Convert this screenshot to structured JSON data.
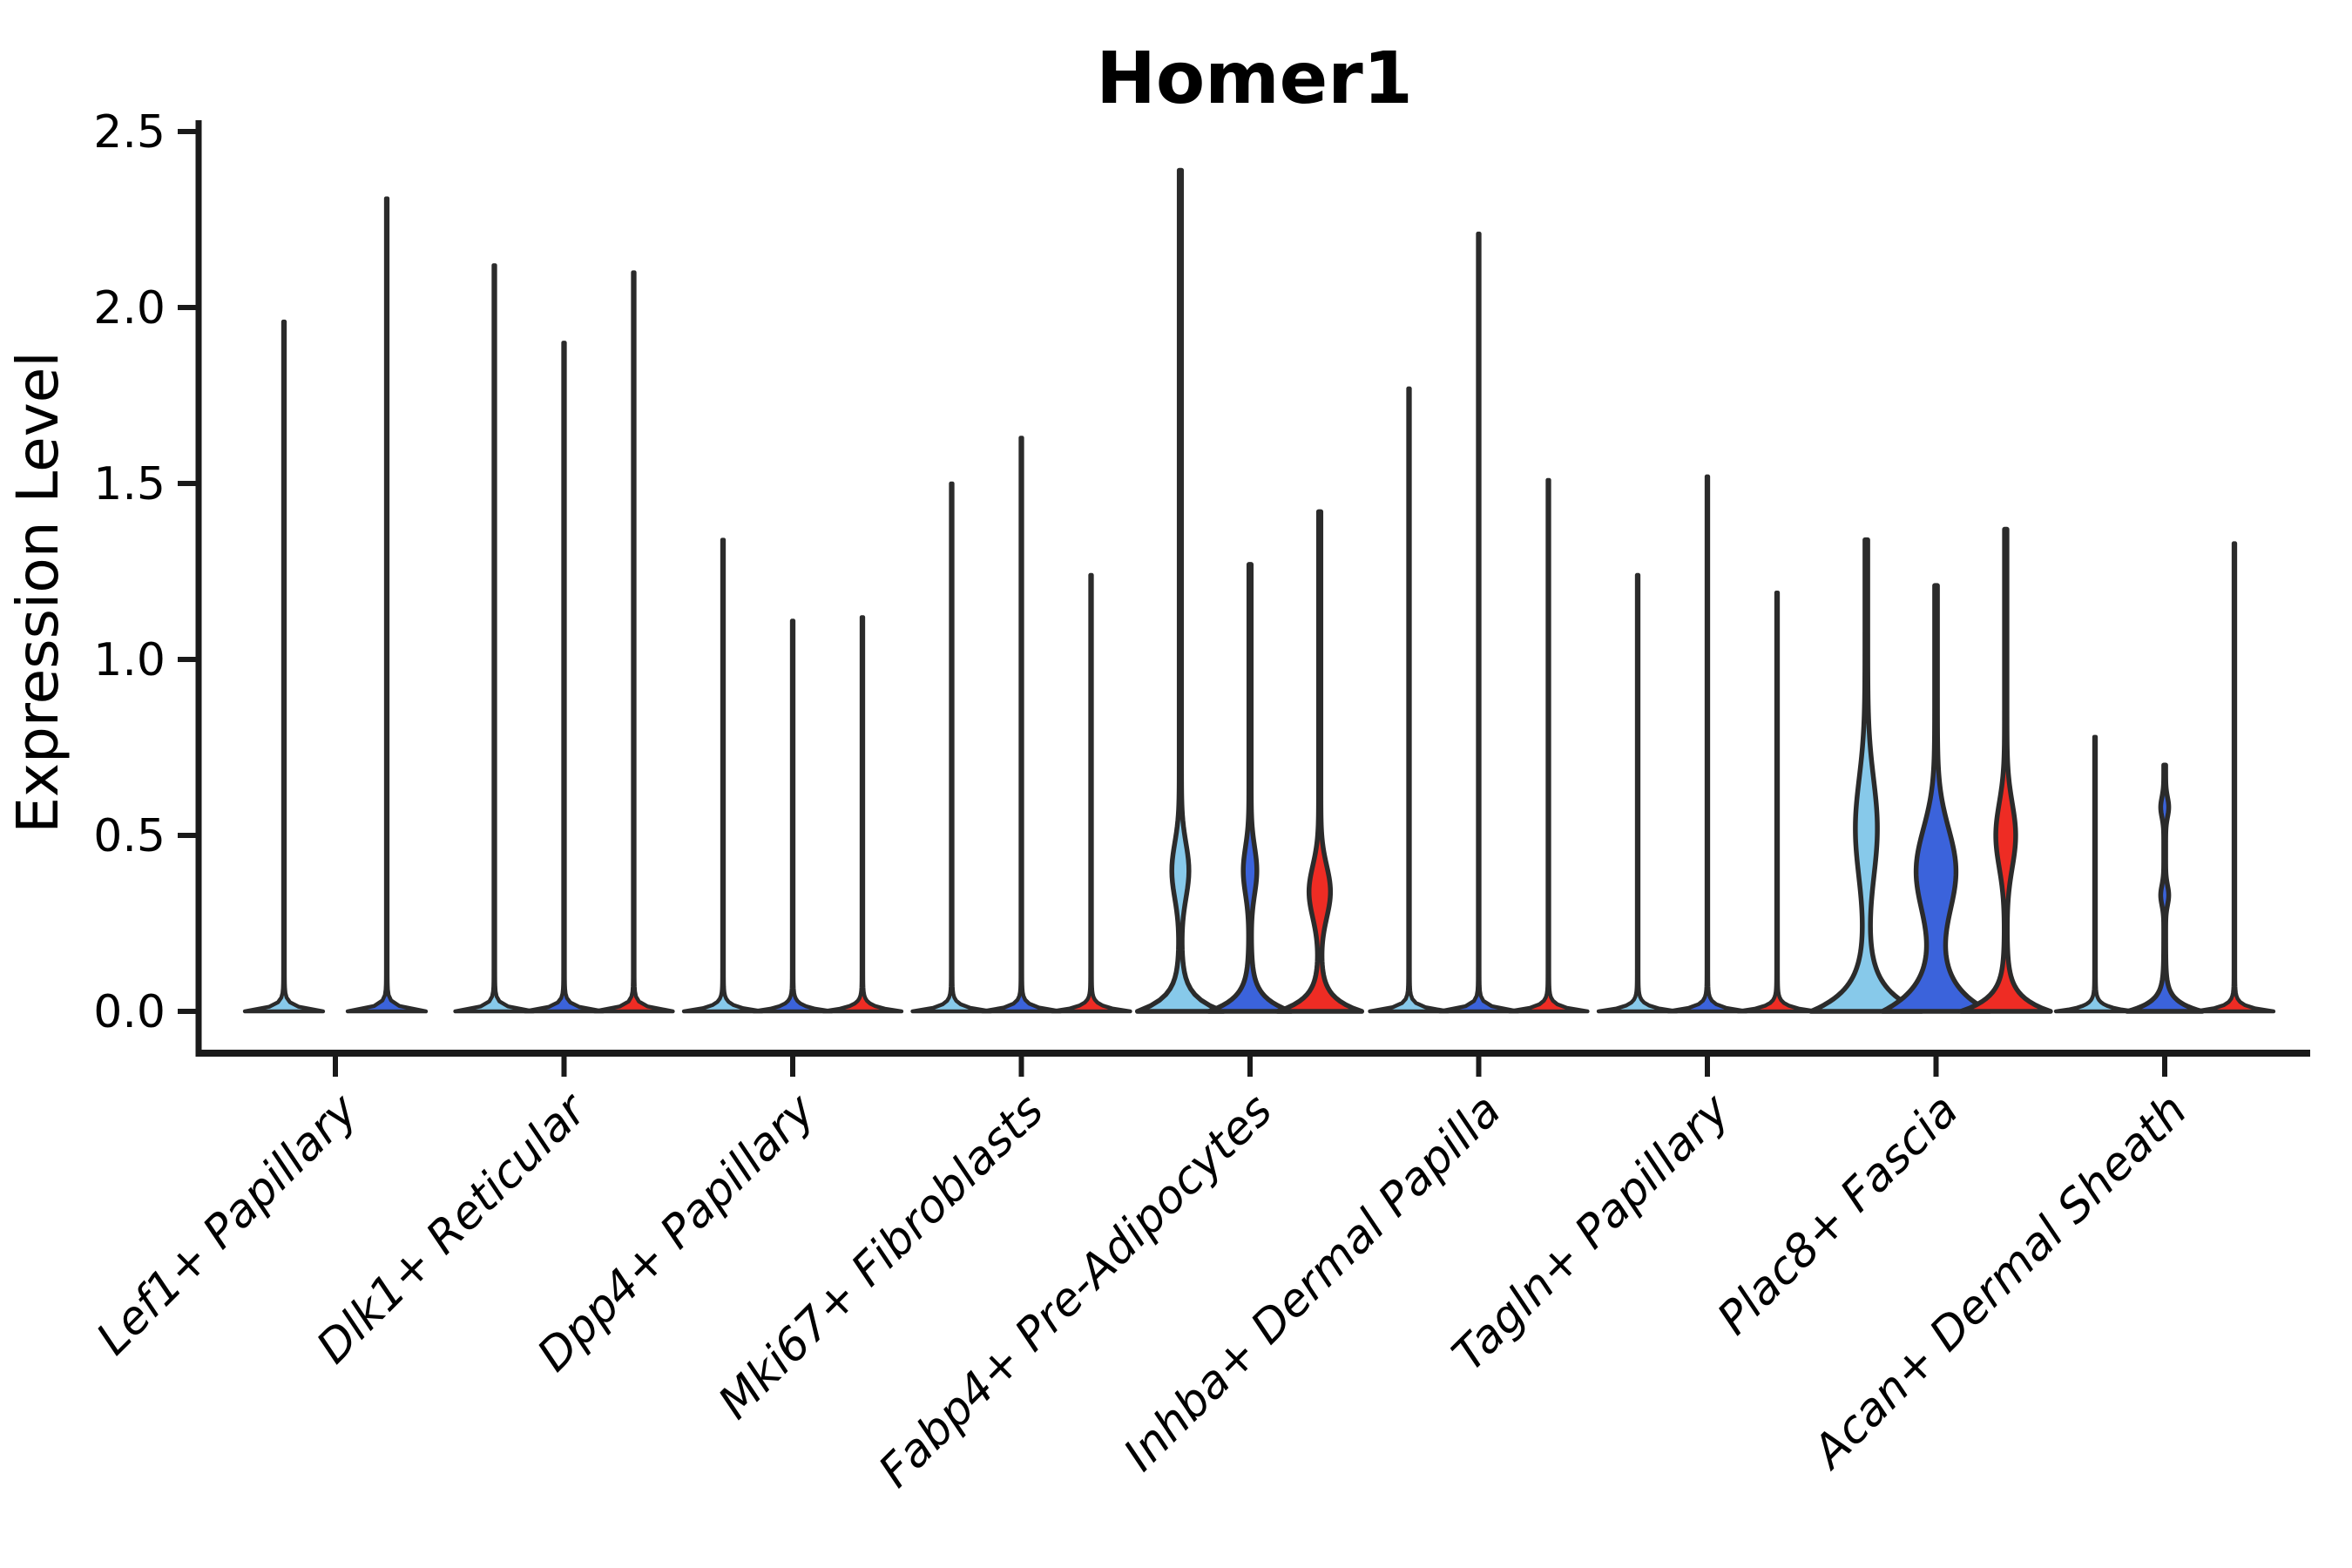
{
  "chart_data": {
    "type": "violin",
    "title": "Homer1",
    "ylabel": "Expression Level",
    "xlabel": "",
    "ylim": [
      0,
      2.5
    ],
    "yticks": [
      "0.0",
      "0.5",
      "1.0",
      "1.5",
      "2.0",
      "2.5"
    ],
    "ytick_values": [
      0.0,
      0.5,
      1.0,
      1.5,
      2.0,
      2.5
    ],
    "grid": false,
    "legend": "none",
    "palette": {
      "light_blue": "#87C9EA",
      "blue": "#3B63DB",
      "red": "#EE2C24",
      "ink": "#2B2B2B",
      "axis": "#1A1A1A"
    },
    "categories": [
      "Lef1+ Papillary",
      "Dlk1+ Reticular",
      "Dpp4+ Papillary",
      "Mki67+ Fibroblasts",
      "Fabp4+ Pre-Adipocytes",
      "Inhba+ Dermal Papilla",
      "Tagln+ Papillary",
      "Plac8+ Fascia",
      "Acan+ Dermal Sheath"
    ],
    "groups": [
      {
        "label": "Lef1+ Papillary",
        "violins": [
          {
            "color": "light_blue",
            "max": 1.96,
            "shape": "spike"
          },
          {
            "color": "blue",
            "max": 2.31,
            "shape": "spike"
          }
        ]
      },
      {
        "label": "Dlk1+ Reticular",
        "violins": [
          {
            "color": "light_blue",
            "max": 2.12,
            "shape": "spike"
          },
          {
            "color": "blue",
            "max": 1.9,
            "shape": "spike"
          },
          {
            "color": "red",
            "max": 2.1,
            "shape": "spike"
          }
        ]
      },
      {
        "label": "Dpp4+ Papillary",
        "violins": [
          {
            "color": "light_blue",
            "max": 1.34,
            "shape": "spike"
          },
          {
            "color": "blue",
            "max": 1.11,
            "shape": "spike"
          },
          {
            "color": "red",
            "max": 1.12,
            "shape": "spike"
          }
        ]
      },
      {
        "label": "Mki67+ Fibroblasts",
        "violins": [
          {
            "color": "light_blue",
            "max": 1.5,
            "shape": "spike"
          },
          {
            "color": "blue",
            "max": 1.63,
            "shape": "spike"
          },
          {
            "color": "red",
            "max": 1.24,
            "shape": "spike"
          }
        ]
      },
      {
        "label": "Fabp4+ Pre-Adipocytes",
        "violins": [
          {
            "color": "light_blue",
            "max": 2.39,
            "shape": "violin",
            "base_hw": 48,
            "base_s": 0.042,
            "line_hw": 1.3,
            "bulges": [
              {
                "c": 0.4,
                "s": 0.11,
                "hw": 8.5
              }
            ]
          },
          {
            "color": "blue",
            "max": 1.27,
            "shape": "violin",
            "base_hw": 46,
            "base_s": 0.04,
            "line_hw": 1.3,
            "bulges": [
              {
                "c": 0.4,
                "s": 0.095,
                "hw": 6.5
              }
            ]
          },
          {
            "color": "red",
            "max": 1.42,
            "shape": "violin",
            "base_hw": 47,
            "base_s": 0.038,
            "line_hw": 1.3,
            "bulges": [
              {
                "c": 0.34,
                "s": 0.105,
                "hw": 11
              }
            ]
          }
        ]
      },
      {
        "label": "Inhba+ Dermal Papilla",
        "violins": [
          {
            "color": "light_blue",
            "max": 1.77,
            "shape": "spike"
          },
          {
            "color": "blue",
            "max": 2.21,
            "shape": "spike"
          },
          {
            "color": "red",
            "max": 1.51,
            "shape": "spike"
          }
        ]
      },
      {
        "label": "Tagln+ Papillary",
        "violins": [
          {
            "color": "light_blue",
            "max": 1.24,
            "shape": "spike"
          },
          {
            "color": "blue",
            "max": 1.52,
            "shape": "spike"
          },
          {
            "color": "red",
            "max": 1.19,
            "shape": "spike"
          }
        ]
      },
      {
        "label": "Plac8+ Fascia",
        "violins": [
          {
            "color": "light_blue",
            "max": 1.34,
            "shape": "violin",
            "base_hw": 62,
            "base_s": 0.065,
            "line_hw": 1.6,
            "bulges": [
              {
                "c": 0.52,
                "s": 0.2,
                "hw": 11
              }
            ]
          },
          {
            "color": "blue",
            "max": 1.21,
            "shape": "violin",
            "base_hw": 60,
            "base_s": 0.075,
            "line_hw": 1.6,
            "bulges": [
              {
                "c": 0.4,
                "s": 0.17,
                "hw": 21
              }
            ]
          },
          {
            "color": "red",
            "max": 1.37,
            "shape": "violin",
            "base_hw": 50,
            "base_s": 0.042,
            "line_hw": 1.4,
            "bulges": [
              {
                "c": 0.5,
                "s": 0.13,
                "hw": 10
              }
            ]
          }
        ]
      },
      {
        "label": "Acan+ Dermal Sheath",
        "violins": [
          {
            "color": "light_blue",
            "max": 0.78,
            "shape": "spike"
          },
          {
            "color": "blue",
            "max": 0.7,
            "shape": "violin",
            "base_hw": 42,
            "base_s": 0.028,
            "line_hw": 1.1,
            "bulges": [
              {
                "c": 0.33,
                "s": 0.04,
                "hw": 3.5
              },
              {
                "c": 0.58,
                "s": 0.04,
                "hw": 3.5
              }
            ]
          },
          {
            "color": "red",
            "max": 1.33,
            "shape": "spike"
          }
        ]
      }
    ]
  }
}
